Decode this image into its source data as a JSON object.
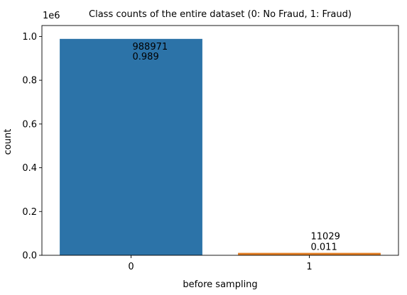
{
  "chart_data": {
    "type": "bar",
    "title": "Class counts of the entire dataset (0: No Fraud, 1: Fraud)",
    "xlabel": "before sampling",
    "ylabel": "count",
    "offset_text": "1e6",
    "categories": [
      "0",
      "1"
    ],
    "values": [
      988971,
      11029
    ],
    "ylim": [
      0,
      1050000
    ],
    "yticks": [
      0,
      200000,
      400000,
      600000,
      800000,
      1000000
    ],
    "ytick_labels": [
      "0.0",
      "0.2",
      "0.4",
      "0.6",
      "0.8",
      "1.0"
    ],
    "bar_colors": [
      "#2c73a8",
      "#e07b22"
    ],
    "annotations": [
      {
        "count": "988971",
        "fraction": "0.989"
      },
      {
        "count": "11029",
        "fraction": "0.011"
      }
    ],
    "grid": false,
    "legend": "none"
  }
}
